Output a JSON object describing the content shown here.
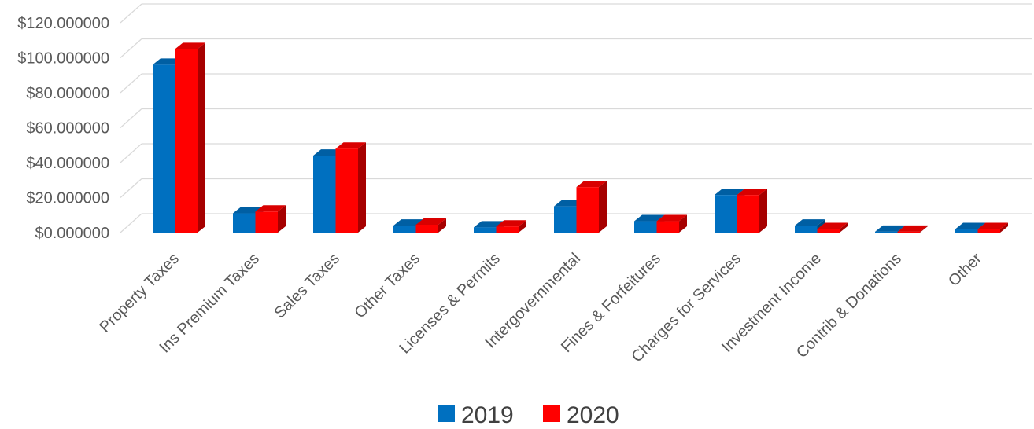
{
  "chart_data": {
    "type": "bar",
    "categories": [
      "Property Taxes",
      "Ins Premium Taxes",
      "Sales Taxes",
      "Other Taxes",
      "Licenses & Permits",
      "Intergovernmental",
      "Fines & Forfeitures",
      "Charges for Services",
      "Investment Income",
      "Contrib & Donations",
      "Other"
    ],
    "series": [
      {
        "name": "2019",
        "color": "#0070C0",
        "values": [
          96,
          11,
          44,
          4,
          3,
          15,
          6.5,
          21.5,
          4,
          0.5,
          2
        ]
      },
      {
        "name": "2020",
        "color": "#FF0000",
        "values": [
          105,
          12,
          48,
          4.5,
          3.5,
          26,
          6.5,
          21.5,
          2,
          0.5,
          2
        ]
      }
    ],
    "yticks": [
      "$0.000000",
      "$20.000000",
      "$40.000000",
      "$60.000000",
      "$80.000000",
      "$100.000000",
      "$120.000000"
    ],
    "ylim": [
      0,
      120
    ],
    "title": "",
    "xlabel": "",
    "ylabel": "",
    "grid": true,
    "legend_position": "bottom",
    "style": "3d-clustered-column"
  }
}
